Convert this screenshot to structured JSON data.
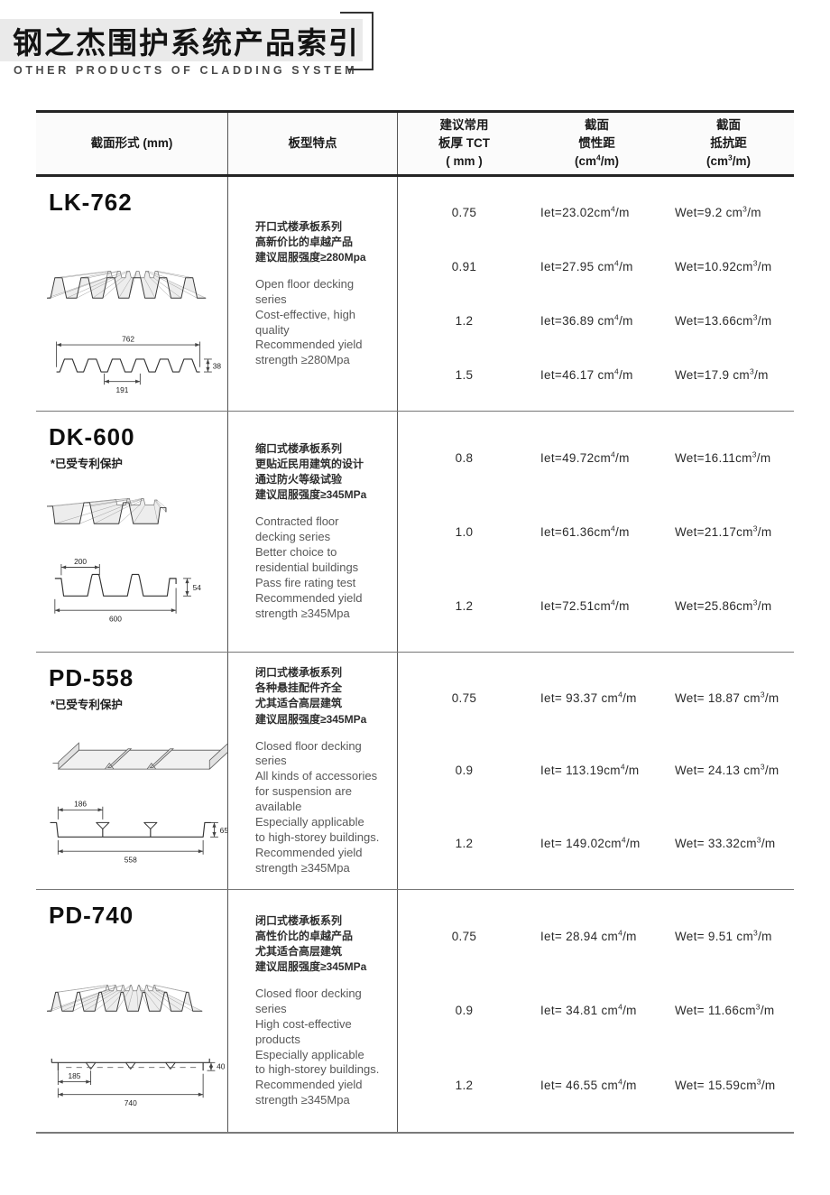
{
  "header": {
    "title": "钢之杰围护系统产品索引",
    "subtitle": "OTHER PRODUCTS OF CLADDING SYSTEM"
  },
  "table": {
    "col_section": "截面形式 (mm)",
    "col_features": "板型特点",
    "col_thickness": [
      "建议常用",
      "板厚 TCT",
      "( mm )"
    ],
    "col_inertia": {
      "l1": "截面",
      "l2": "惯性距",
      "u_pre": "(cm",
      "u_exp": "4",
      "u_post": "/m)"
    },
    "col_resist": {
      "l1": "截面",
      "l2": "抵抗距",
      "u_pre": "(cm",
      "u_exp": "3",
      "u_post": "/m)"
    }
  },
  "units": {
    "cm": "cm",
    "exp4": "4",
    "exp3": "3",
    "per": "/m"
  },
  "products": [
    {
      "name": "LK-762",
      "patent": "",
      "features_cn": [
        "开口式楼承板系列",
        "高新价比的卓越产品",
        "建议屈服强度≥280Mpa"
      ],
      "features_en": [
        "Open floor decking",
        "series",
        "Cost-effective, high",
        "quality",
        "Recommended yield",
        "strength ≥280Mpa"
      ],
      "dims": {
        "overall": "762",
        "sub": "191",
        "height": "38"
      },
      "rows": [
        {
          "t": "0.75",
          "iet": "Iet=23.02",
          "wet": "Wet=9.2 "
        },
        {
          "t": "0.91",
          "iet": "Iet=27.95 ",
          "wet": "Wet=10.92"
        },
        {
          "t": "1.2",
          "iet": "Iet=36.89 ",
          "wet": "Wet=13.66"
        },
        {
          "t": "1.5",
          "iet": "Iet=46.17 ",
          "wet": "Wet=17.9 "
        }
      ]
    },
    {
      "name": "DK-600",
      "patent": "*已受专利保护",
      "features_cn": [
        "缩口式楼承板系列",
        "更贴近民用建筑的设计",
        "通过防火等级试验",
        "建议屈服强度≥345MPa"
      ],
      "features_en": [
        "Contracted floor",
        "decking series",
        "Better choice to",
        "residential buildings",
        "Pass fire rating test",
        "Recommended yield",
        "strength ≥345Mpa"
      ],
      "dims": {
        "overall": "600",
        "sub": "200",
        "height": "54"
      },
      "rows": [
        {
          "t": "0.8",
          "iet": "Iet=49.72",
          "wet": "Wet=16.11"
        },
        {
          "t": "1.0",
          "iet": "Iet=61.36",
          "wet": "Wet=21.17"
        },
        {
          "t": "1.2",
          "iet": "Iet=72.51",
          "wet": "Wet=25.86"
        }
      ]
    },
    {
      "name": "PD-558",
      "patent": "*已受专利保护",
      "features_cn": [
        "闭口式楼承板系列",
        "各种悬挂配件齐全",
        "尤其适合高层建筑",
        "建议屈服强度≥345MPa"
      ],
      "features_en": [
        "Closed floor decking",
        "series",
        "All kinds of accessories",
        "for suspension are",
        "available",
        "Especially applicable",
        "to high-storey buildings.",
        "Recommended yield",
        "strength ≥345Mpa"
      ],
      "dims": {
        "overall": "558",
        "sub": "186",
        "height": "65"
      },
      "rows": [
        {
          "t": "0.75",
          "iet": "Iet= 93.37 ",
          "wet": "Wet= 18.87 "
        },
        {
          "t": "0.9",
          "iet": "Iet= 113.19",
          "wet": "Wet= 24.13 "
        },
        {
          "t": "1.2",
          "iet": "Iet= 149.02",
          "wet": "Wet= 33.32"
        }
      ]
    },
    {
      "name": "PD-740",
      "patent": "",
      "features_cn": [
        "闭口式楼承板系列",
        "高性价比的卓越产品",
        "尤其适合高层建筑",
        "建议屈服强度≥345MPa"
      ],
      "features_en": [
        "Closed floor decking",
        "series",
        "High cost-effective",
        "products",
        "Especially applicable",
        "to high-storey buildings.",
        "Recommended yield",
        "strength ≥345Mpa"
      ],
      "dims": {
        "overall": "740",
        "sub": "185",
        "height": "40"
      },
      "rows": [
        {
          "t": "0.75",
          "iet": "Iet= 28.94 ",
          "wet": "Wet= 9.51 "
        },
        {
          "t": "0.9",
          "iet": "Iet= 34.81 ",
          "wet": "Wet= 11.66"
        },
        {
          "t": "1.2",
          "iet": "Iet= 46.55 ",
          "wet": "Wet= 15.59"
        }
      ]
    }
  ]
}
